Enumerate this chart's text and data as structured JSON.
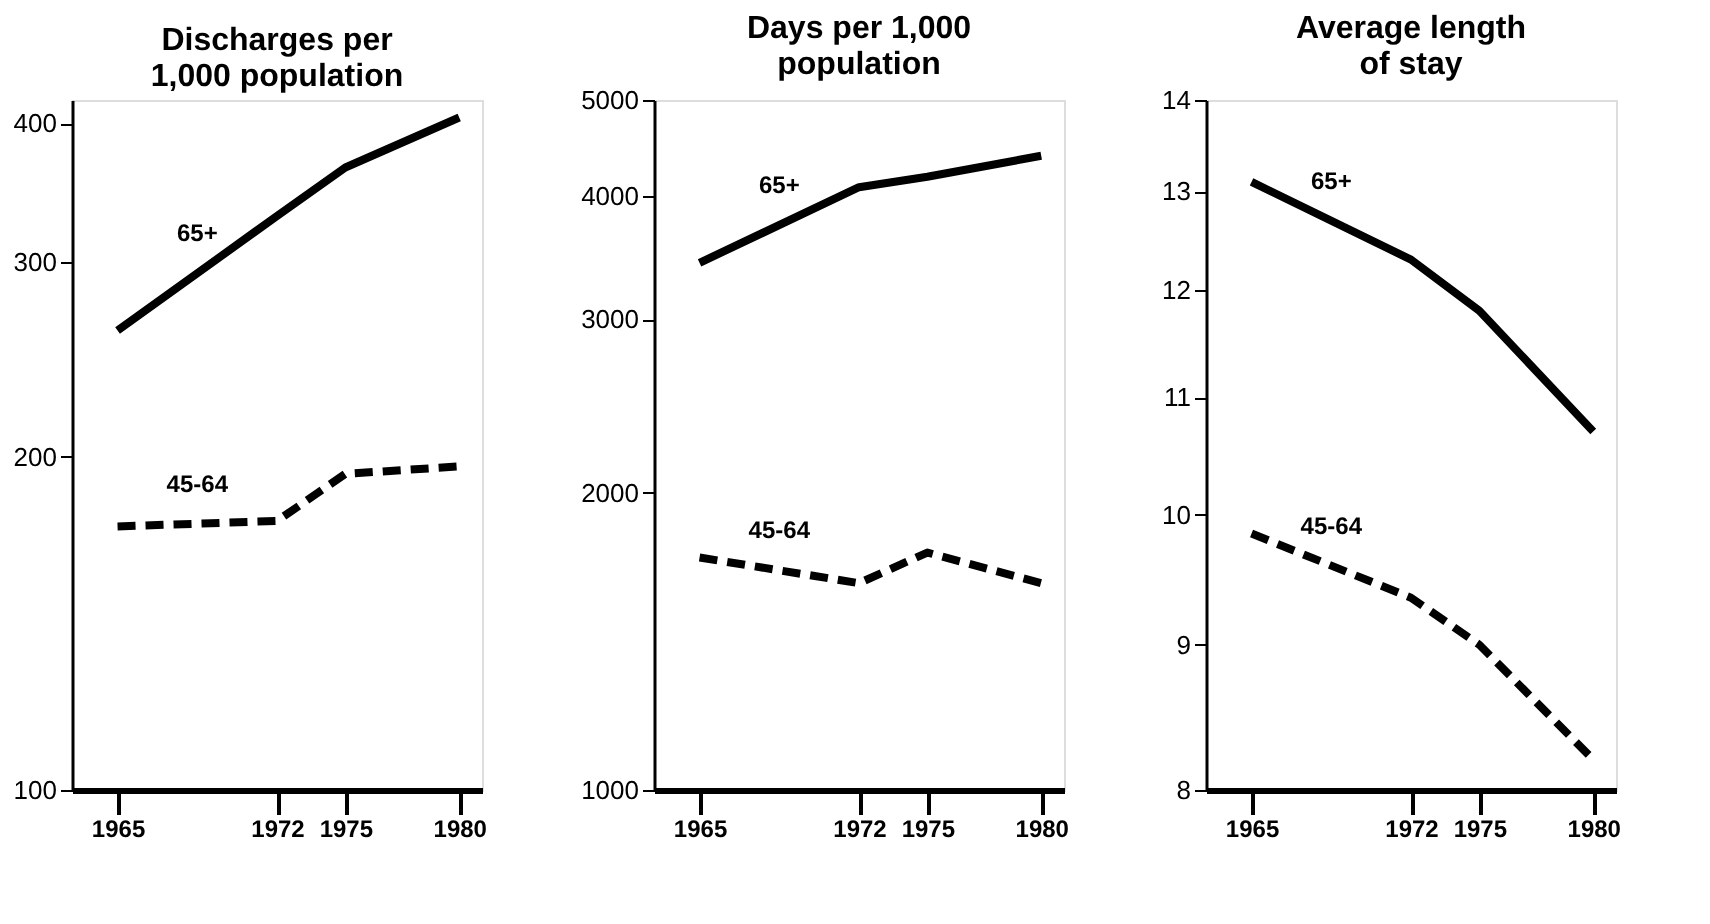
{
  "chart_data": [
    {
      "type": "line",
      "title": "Discharges per\n1,000 population",
      "x": [
        1965,
        1972,
        1975,
        1980
      ],
      "xlim": [
        1963,
        1981
      ],
      "xticks": [
        1965,
        1972,
        1975,
        1980
      ],
      "ylim": [
        100,
        420
      ],
      "yticks": [
        100,
        200,
        300,
        400
      ],
      "log": "y",
      "grid": false,
      "legend": false,
      "series": [
        {
          "name": "65+",
          "color": "#000000",
          "line_style": "solid",
          "values": [
            260,
            330,
            365,
            405
          ]
        },
        {
          "name": "45-64",
          "color": "#000000",
          "line_style": "dashed",
          "values": [
            173,
            175,
            193,
            196
          ]
        }
      ]
    },
    {
      "type": "line",
      "title": "Days per 1,000\npopulation",
      "x": [
        1965,
        1972,
        1975,
        1980
      ],
      "xlim": [
        1963,
        1981
      ],
      "xticks": [
        1965,
        1972,
        1975,
        1980
      ],
      "ylim": [
        1000,
        5000
      ],
      "yticks": [
        1000,
        2000,
        3000,
        4000,
        5000
      ],
      "log": "y",
      "grid": false,
      "legend": false,
      "series": [
        {
          "name": "65+",
          "color": "#000000",
          "line_style": "solid",
          "values": [
            3420,
            4080,
            4180,
            4390
          ]
        },
        {
          "name": "45-64",
          "color": "#000000",
          "line_style": "dashed",
          "values": [
            1720,
            1620,
            1740,
            1620
          ]
        }
      ]
    },
    {
      "type": "line",
      "title": "Average length\nof stay",
      "x": [
        1965,
        1972,
        1975,
        1980
      ],
      "xlim": [
        1963,
        1981
      ],
      "xticks": [
        1965,
        1972,
        1975,
        1980
      ],
      "ylim": [
        8,
        14
      ],
      "yticks": [
        8,
        9,
        10,
        11,
        12,
        13,
        14
      ],
      "log": "y",
      "grid": false,
      "legend": false,
      "series": [
        {
          "name": "65+",
          "color": "#000000",
          "line_style": "solid",
          "values": [
            13.1,
            12.3,
            11.8,
            10.7
          ]
        },
        {
          "name": "45-64",
          "color": "#000000",
          "line_style": "dashed",
          "values": [
            9.85,
            9.35,
            9.0,
            8.2
          ]
        }
      ]
    }
  ]
}
